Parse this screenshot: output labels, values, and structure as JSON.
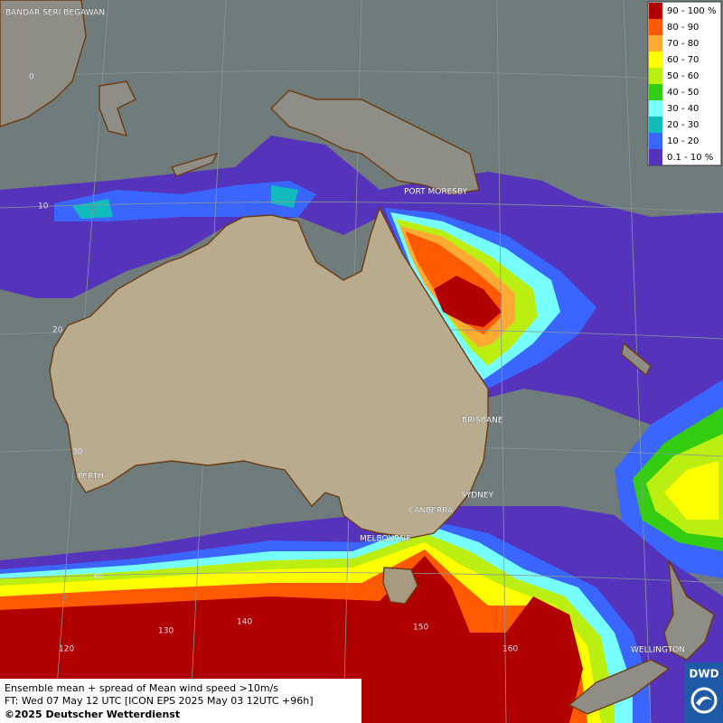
{
  "legend": {
    "items": [
      {
        "label": "90 - 100 %",
        "color": "#b00000"
      },
      {
        "label": "80 - 90",
        "color": "#ff5a00"
      },
      {
        "label": "70 - 80",
        "color": "#ffaa33"
      },
      {
        "label": "60 - 70",
        "color": "#ffff00"
      },
      {
        "label": "50 - 60",
        "color": "#bbee11"
      },
      {
        "label": "40 - 50",
        "color": "#33cc11"
      },
      {
        "label": "30 - 40",
        "color": "#77ffff"
      },
      {
        "label": "20 - 30",
        "color": "#11bbbb"
      },
      {
        "label": "10 - 20",
        "color": "#3a66ff"
      },
      {
        "label": "0.1 - 10 %",
        "color": "#5533bb"
      }
    ]
  },
  "cities": [
    "BANDAR SERI BEGAWAN",
    "PORT MORESBY",
    "BRISBANE",
    "PERTH",
    "SYDNEY",
    "CANBERRA",
    "MELBOURNE",
    "WELLINGTON"
  ],
  "grid_labels": [
    "0",
    "10",
    "20",
    "30",
    "40",
    "120",
    "130",
    "140",
    "150",
    "160"
  ],
  "footer": {
    "line1": "Ensemble mean + spread of Mean wind speed >10m/s",
    "line2": "FT: Wed 07 May 12 UTC [ICON EPS 2025 May 03 12UTC +96h]",
    "line3": "©2025 Deutscher Wetterdienst"
  },
  "logo": "DWD"
}
